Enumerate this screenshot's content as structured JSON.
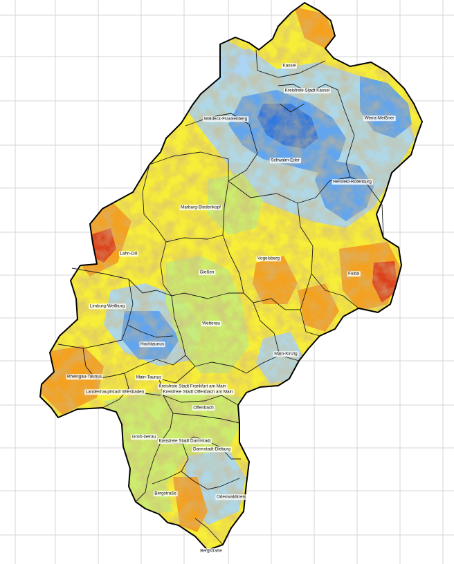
{
  "map": {
    "colors": {
      "background": "#ffffff",
      "grid": "#d6d6d6",
      "border": "#000000",
      "dark_blue": "#2f74e0",
      "blue": "#5aa0f0",
      "light_blue": "#a9d5f5",
      "light_green": "#c7ec74",
      "yellow": "#f7ee3a",
      "orange": "#f39a1e",
      "red": "#d9381e"
    },
    "districts": [
      {
        "id": "kassel",
        "name": "Kassel"
      },
      {
        "id": "kassel-stadt",
        "name": "Kreisfreie Stadt Kassel"
      },
      {
        "id": "werra-meissner",
        "name": "Werra-Meißner"
      },
      {
        "id": "waldeck-frankenberg",
        "name": "Waldeck-Frankenberg"
      },
      {
        "id": "schwalm-eder",
        "name": "Schwalm-Eder"
      },
      {
        "id": "hersfeld-rotenburg",
        "name": "Hersfeld-Rotenburg"
      },
      {
        "id": "marburg-biedenkopf",
        "name": "Marburg-Biedenkopf"
      },
      {
        "id": "lahn-dill",
        "name": "Lahn-Dill"
      },
      {
        "id": "vogelsberg",
        "name": "Vogelsberg"
      },
      {
        "id": "fulda",
        "name": "Fulda"
      },
      {
        "id": "giessen",
        "name": "Gießen"
      },
      {
        "id": "limburg-weilburg",
        "name": "Limburg-Weilburg"
      },
      {
        "id": "wetterau",
        "name": "Wetterau"
      },
      {
        "id": "hochtaunus",
        "name": "Hochtaunus"
      },
      {
        "id": "main-kinzig",
        "name": "Main-Kinzig"
      },
      {
        "id": "rheingau-taunus",
        "name": "Rheingau-Taunus"
      },
      {
        "id": "main-taunus",
        "name": "Main-Taunus"
      },
      {
        "id": "wiesbaden",
        "name": "Landeshauptstadt Wiesbaden"
      },
      {
        "id": "frankfurt",
        "name": "Kreisfreie Stadt Frankfurt am Main"
      },
      {
        "id": "offenbach-stadt",
        "name": "Kreisfreie Stadt Offenbach am Main"
      },
      {
        "id": "offenbach",
        "name": "Offenbach"
      },
      {
        "id": "gross-gerau",
        "name": "Groß-Gerau"
      },
      {
        "id": "darmstadt-stadt",
        "name": "Kreisfreie Stadt Darmstadt"
      },
      {
        "id": "darmstadt-dieburg",
        "name": "Darmstadt-Dieburg"
      },
      {
        "id": "bergstrasse",
        "name": "Bergstraße"
      },
      {
        "id": "odenwaldkreis",
        "name": "Odenwaldkreis"
      },
      {
        "id": "bergstrasse-south",
        "name": "Bergstraße"
      }
    ]
  }
}
